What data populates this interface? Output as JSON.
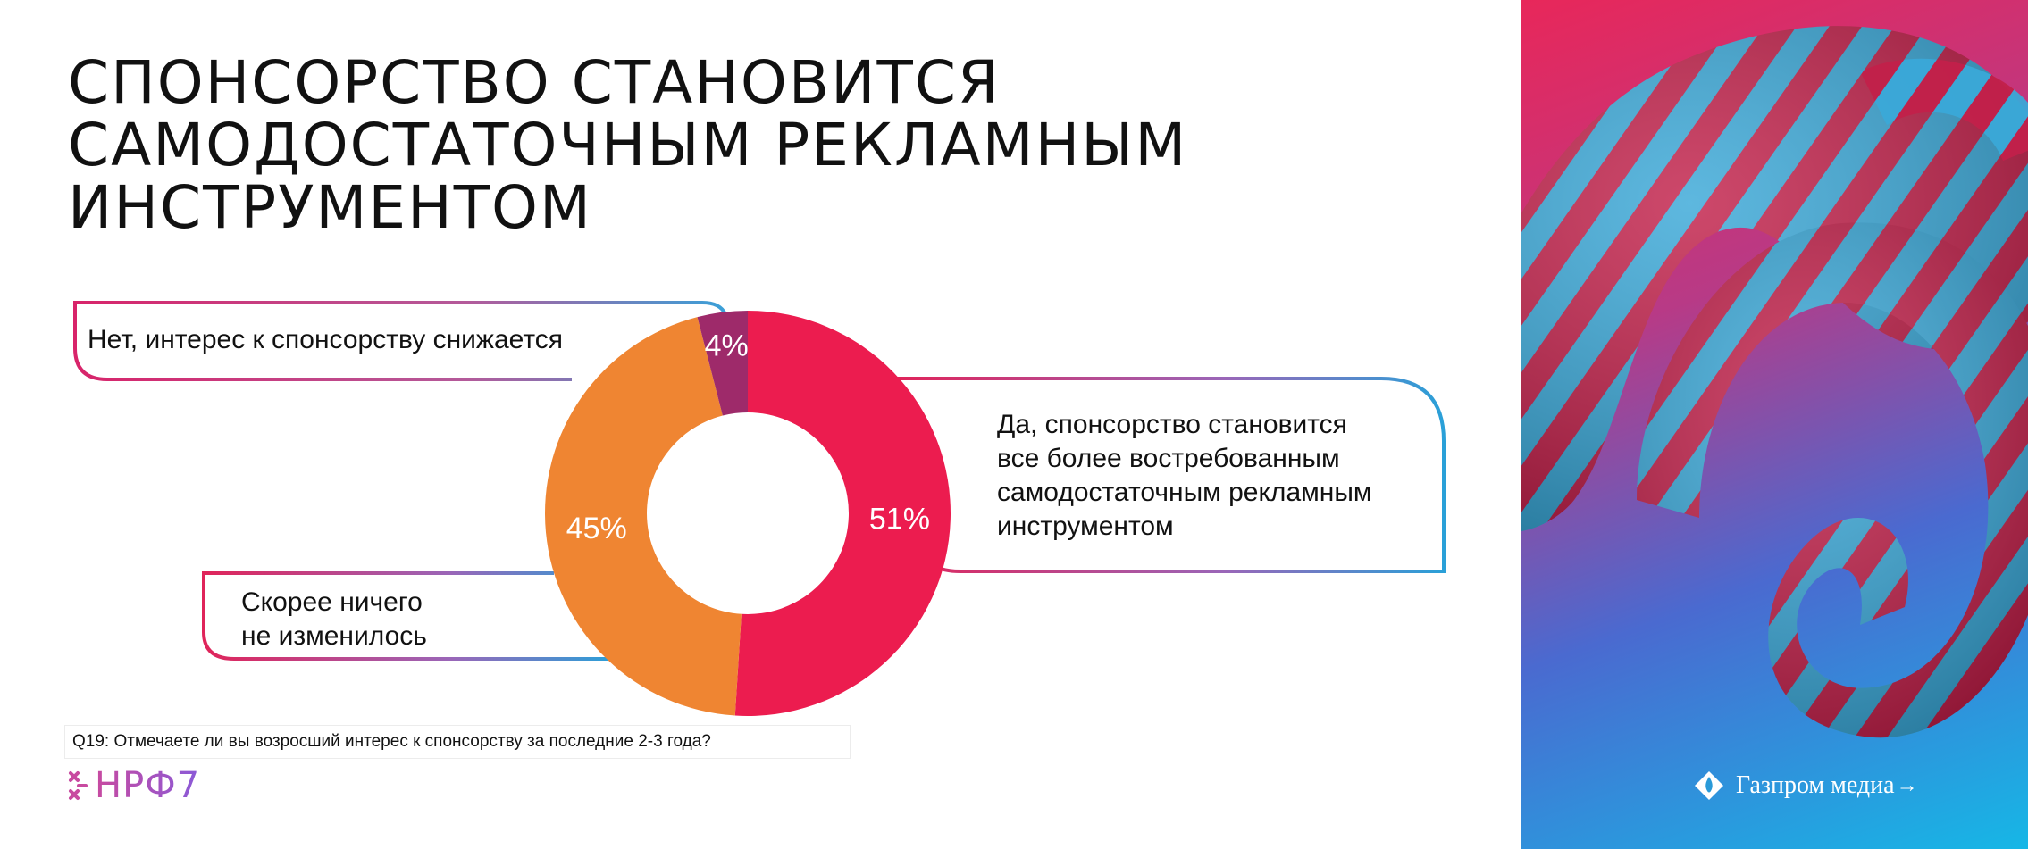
{
  "title_lines": [
    "СПОНСОРСТВО СТАНОВИТСЯ",
    "САМОДОСТАТОЧНЫМ РЕКЛАМНЫМ",
    "ИНСТРУМЕНТОМ"
  ],
  "question": "Q19: Отмечаете ли вы возросший интерес к спонсорству за последние 2-3 года?",
  "labels": {
    "no_interest": "Нет, интерес к спонсорству снижается",
    "unchanged_1": "Скорее ничего",
    "unchanged_2": "не изменилось",
    "yes_1": "Да, спонсорство становится",
    "yes_2": "все более востребованным",
    "yes_3": "самодостаточным рекламным",
    "yes_4": "инструментом"
  },
  "logos": {
    "event": "НРФ7",
    "company": "Газпром медиа"
  },
  "colors": {
    "yes": "#ec1c4f",
    "unchanged": "#ef8532",
    "no": "#9e2a6a",
    "frame_start": "#d8246a",
    "frame_end": "#2aa0d8"
  },
  "chart_data": {
    "type": "pie",
    "donut": true,
    "title": "",
    "slices": [
      {
        "label": "Да, спонсорство становится все более востребованным самодостаточным рекламным инструментом",
        "value": 51,
        "display": "51%",
        "color": "#ec1c4f"
      },
      {
        "label": "Скорее ничего не изменилось",
        "value": 45,
        "display": "45%",
        "color": "#ef8532"
      },
      {
        "label": "Нет, интерес к спонсорству снижается",
        "value": 4,
        "display": "4%",
        "color": "#9e2a6a"
      }
    ]
  }
}
